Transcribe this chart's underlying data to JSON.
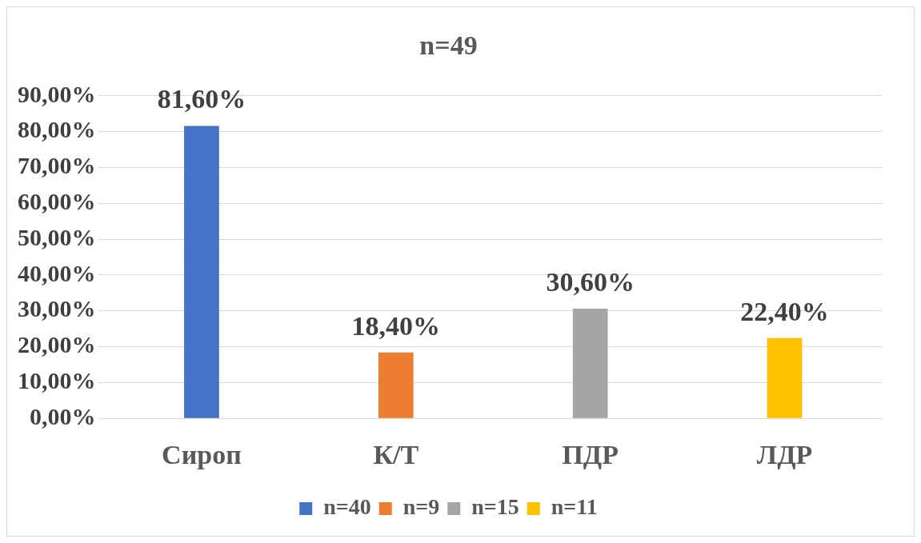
{
  "chart_data": {
    "type": "bar",
    "title": "n=49",
    "categories": [
      "Сироп",
      "К/Т",
      "ПДР",
      "ЛДР"
    ],
    "series": [
      {
        "name": "n=40",
        "color": "#4472c4",
        "values": [
          81.6,
          null,
          null,
          null
        ],
        "value_labels": [
          "81,60%",
          null,
          null,
          null
        ]
      },
      {
        "name": "n=9",
        "color": "#ed7d31",
        "values": [
          null,
          18.4,
          null,
          null
        ],
        "value_labels": [
          null,
          "18,40%",
          null,
          null
        ]
      },
      {
        "name": "n=15",
        "color": "#a5a5a5",
        "values": [
          null,
          null,
          30.6,
          null
        ],
        "value_labels": [
          null,
          null,
          "30,60%",
          null
        ]
      },
      {
        "name": "n=11",
        "color": "#ffc000",
        "values": [
          null,
          null,
          null,
          22.4
        ],
        "value_labels": [
          null,
          null,
          null,
          "22,40%"
        ]
      }
    ],
    "ylim": [
      0,
      90
    ],
    "yticks": [
      {
        "value": 0,
        "label": "0,00%"
      },
      {
        "value": 10,
        "label": "10,00%"
      },
      {
        "value": 20,
        "label": "20,00%"
      },
      {
        "value": 30,
        "label": "30,00%"
      },
      {
        "value": 40,
        "label": "40,00%"
      },
      {
        "value": 50,
        "label": "50,00%"
      },
      {
        "value": 60,
        "label": "60,00%"
      },
      {
        "value": 70,
        "label": "70,00%"
      },
      {
        "value": 80,
        "label": "80,00%"
      },
      {
        "value": 90,
        "label": "90,00%"
      }
    ],
    "grid": "y",
    "legend": "bottom"
  }
}
